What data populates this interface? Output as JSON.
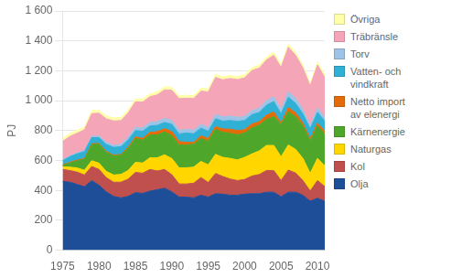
{
  "chart_data": {
    "type": "area",
    "stacked": true,
    "ylabel": "PJ",
    "x": [
      1975,
      1976,
      1977,
      1978,
      1979,
      1980,
      1981,
      1982,
      1983,
      1984,
      1985,
      1986,
      1987,
      1988,
      1989,
      1990,
      1991,
      1992,
      1993,
      1994,
      1995,
      1996,
      1997,
      1998,
      1999,
      2000,
      2001,
      2002,
      2003,
      2004,
      2005,
      2006,
      2007,
      2008,
      2009,
      2010,
      2011
    ],
    "series": [
      {
        "name": "Olja",
        "color": "#1f4e99",
        "values": [
          460,
          455,
          440,
          425,
          465,
          435,
          390,
          360,
          350,
          360,
          385,
          380,
          395,
          405,
          415,
          390,
          355,
          355,
          350,
          368,
          355,
          378,
          375,
          368,
          368,
          375,
          378,
          378,
          388,
          388,
          358,
          388,
          388,
          368,
          328,
          348,
          328
        ]
      },
      {
        "name": "Kol",
        "color": "#c0504d",
        "values": [
          80,
          78,
          82,
          78,
          95,
          105,
          95,
          95,
          105,
          115,
          135,
          135,
          145,
          125,
          125,
          115,
          88,
          88,
          98,
          118,
          98,
          135,
          118,
          108,
          98,
          98,
          118,
          128,
          145,
          145,
          108,
          148,
          128,
          98,
          68,
          118,
          98
        ]
      },
      {
        "name": "Naturgas",
        "color": "#ffd600",
        "values": [
          18,
          22,
          28,
          32,
          38,
          42,
          42,
          48,
          52,
          58,
          68,
          68,
          78,
          88,
          98,
          108,
          108,
          108,
          108,
          108,
          118,
          128,
          128,
          138,
          138,
          148,
          148,
          158,
          168,
          168,
          158,
          168,
          158,
          148,
          118,
          148,
          138
        ]
      },
      {
        "name": "Kärnenergie",
        "color": "#4ea72a",
        "values": [
          8,
          28,
          48,
          72,
          108,
          128,
          128,
          128,
          128,
          148,
          158,
          153,
          153,
          153,
          153,
          153,
          153,
          153,
          153,
          153,
          158,
          168,
          168,
          168,
          168,
          163,
          173,
          173,
          173,
          193,
          218,
          223,
          218,
          218,
          218,
          218,
          213
        ]
      },
      {
        "name": "Netto import\nav elenergi",
        "color": "#e36c09",
        "values": [
          5,
          5,
          5,
          5,
          5,
          5,
          5,
          5,
          5,
          8,
          12,
          12,
          18,
          22,
          22,
          28,
          22,
          18,
          12,
          18,
          18,
          18,
          22,
          28,
          28,
          22,
          28,
          22,
          28,
          32,
          8,
          28,
          28,
          18,
          12,
          18,
          18
        ]
      },
      {
        "name": "Vatten- och\nvindkraft",
        "color": "#31b0d5",
        "values": [
          28,
          38,
          42,
          48,
          42,
          38,
          48,
          52,
          52,
          48,
          42,
          48,
          42,
          42,
          42,
          48,
          52,
          62,
          58,
          52,
          48,
          52,
          52,
          58,
          62,
          62,
          62,
          62,
          68,
          68,
          62,
          68,
          62,
          62,
          68,
          72,
          68
        ]
      },
      {
        "name": "Torv",
        "color": "#9dc3e6",
        "values": [
          4,
          5,
          6,
          7,
          9,
          11,
          13,
          15,
          17,
          19,
          21,
          23,
          24,
          26,
          26,
          26,
          24,
          24,
          24,
          25,
          26,
          29,
          29,
          29,
          27,
          27,
          27,
          29,
          31,
          32,
          29,
          37,
          34,
          29,
          24,
          29,
          24
        ]
      },
      {
        "name": "Träbränsle",
        "color": "#f4a6b8",
        "values": [
          125,
          130,
          132,
          138,
          152,
          152,
          158,
          162,
          158,
          162,
          172,
          172,
          172,
          178,
          192,
          202,
          212,
          208,
          212,
          222,
          238,
          248,
          248,
          252,
          252,
          258,
          268,
          268,
          272,
          278,
          282,
          298,
          288,
          278,
          262,
          288,
          268
        ]
      },
      {
        "name": "Övriga",
        "color": "#ffffaa",
        "values": [
          20,
          20,
          20,
          20,
          20,
          20,
          20,
          20,
          20,
          20,
          20,
          20,
          20,
          20,
          20,
          20,
          20,
          20,
          20,
          20,
          20,
          20,
          20,
          20,
          20,
          20,
          20,
          20,
          20,
          20,
          20,
          20,
          20,
          20,
          20,
          20,
          20
        ]
      }
    ],
    "xlim": [
      1975,
      2011
    ],
    "xticks": [
      1975,
      1980,
      1985,
      1990,
      1995,
      2000,
      2005,
      2010
    ],
    "ylim": [
      0,
      1600
    ],
    "yticks": [
      0,
      200,
      400,
      600,
      800,
      {
        "value": 1000,
        "label": "1 000"
      },
      {
        "value": 1200,
        "label": "1 200"
      },
      {
        "value": 1400,
        "label": "1 400"
      },
      {
        "value": 1600,
        "label": "1 600"
      }
    ],
    "grid": "y",
    "legend": "right"
  }
}
